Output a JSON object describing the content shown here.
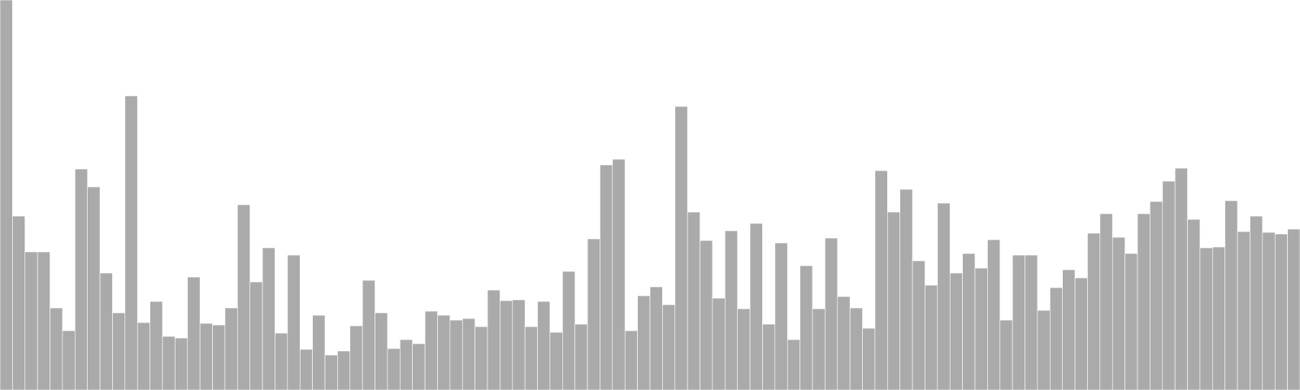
{
  "chart_data": {
    "type": "bar",
    "title": "",
    "xlabel": "",
    "ylabel": "",
    "ylim": [
      0,
      480
    ],
    "grid": false,
    "legend": "none",
    "bar_color": "#aaaaaa",
    "bar_edge_color": "#ffffff",
    "values": [
      480,
      214,
      170,
      170,
      101,
      73,
      272,
      250,
      144,
      95,
      362,
      83,
      109,
      66,
      64,
      139,
      82,
      80,
      101,
      228,
      133,
      175,
      70,
      166,
      50,
      92,
      43,
      48,
      79,
      135,
      95,
      51,
      62,
      57,
      97,
      92,
      86,
      88,
      78,
      123,
      110,
      111,
      78,
      109,
      71,
      146,
      81,
      186,
      277,
      284,
      73,
      116,
      127,
      105,
      349,
      219,
      184,
      113,
      196,
      100,
      205,
      81,
      181,
      62,
      153,
      100,
      187,
      115,
      101,
      76,
      270,
      219,
      247,
      159,
      129,
      230,
      144,
      168,
      150,
      185,
      86,
      166,
      166,
      98,
      126,
      148,
      138,
      193,
      217,
      188,
      168,
      217,
      232,
      257,
      273,
      210,
      175,
      176,
      233,
      195,
      214,
      194,
      192,
      198
    ]
  }
}
